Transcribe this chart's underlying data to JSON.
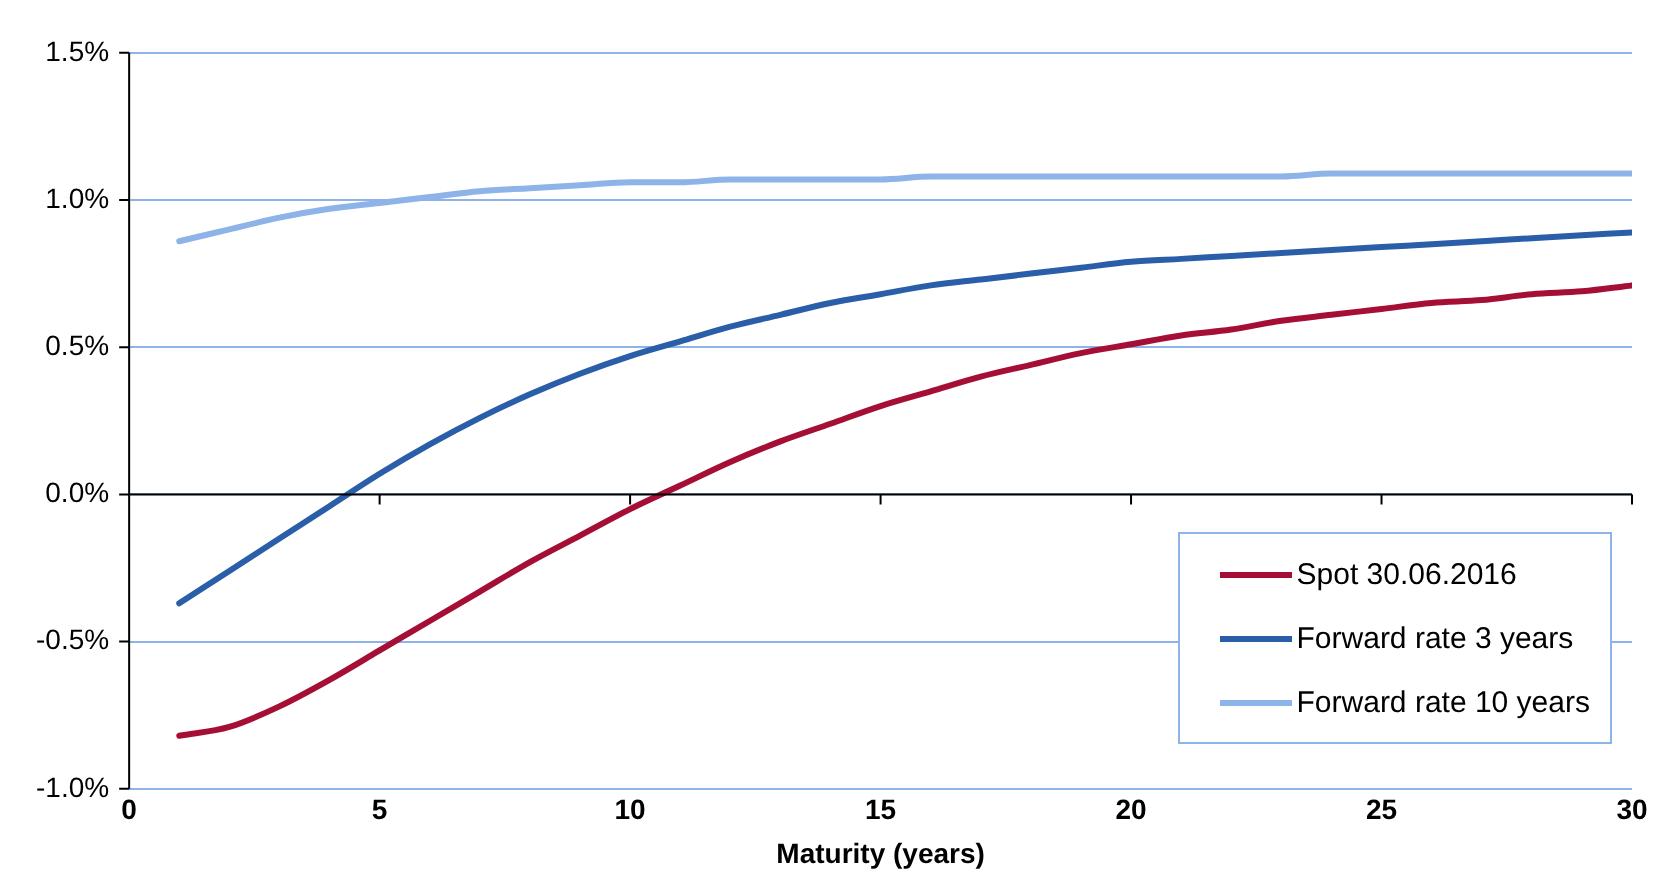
{
  "chart_data": {
    "type": "line",
    "xlabel": "Maturity (years)",
    "x": [
      1,
      2,
      3,
      4,
      5,
      6,
      7,
      8,
      9,
      10,
      11,
      12,
      13,
      14,
      15,
      16,
      17,
      18,
      19,
      20,
      21,
      22,
      23,
      24,
      25,
      26,
      27,
      28,
      29,
      30
    ],
    "series": [
      {
        "name": "Spot 30.06.2016",
        "color": "#a50f36",
        "values": [
          -0.82,
          -0.79,
          -0.72,
          -0.63,
          -0.53,
          -0.43,
          -0.33,
          -0.23,
          -0.14,
          -0.05,
          0.03,
          0.11,
          0.18,
          0.24,
          0.3,
          0.35,
          0.4,
          0.44,
          0.48,
          0.51,
          0.54,
          0.56,
          0.59,
          0.61,
          0.63,
          0.65,
          0.66,
          0.68,
          0.69,
          0.71
        ]
      },
      {
        "name": "Forward rate 3 years",
        "color": "#2a5ea8",
        "values": [
          -0.37,
          -0.26,
          -0.15,
          -0.04,
          0.07,
          0.17,
          0.26,
          0.34,
          0.41,
          0.47,
          0.52,
          0.57,
          0.61,
          0.65,
          0.68,
          0.71,
          0.73,
          0.75,
          0.77,
          0.79,
          0.8,
          0.81,
          0.82,
          0.83,
          0.84,
          0.85,
          0.86,
          0.87,
          0.88,
          0.89
        ]
      },
      {
        "name": "Forward rate 10 years",
        "color": "#8db3e8",
        "values": [
          0.86,
          0.9,
          0.94,
          0.97,
          0.99,
          1.01,
          1.03,
          1.04,
          1.05,
          1.06,
          1.06,
          1.07,
          1.07,
          1.07,
          1.07,
          1.08,
          1.08,
          1.08,
          1.08,
          1.08,
          1.08,
          1.08,
          1.08,
          1.09,
          1.09,
          1.09,
          1.09,
          1.09,
          1.09,
          1.09
        ]
      }
    ],
    "xlim": [
      0,
      30
    ],
    "xticks": [
      0,
      5,
      10,
      15,
      20,
      25,
      30
    ],
    "ylim": [
      -1.0,
      1.5
    ],
    "yticks": [
      {
        "value": -1.0,
        "label": "-1.0%"
      },
      {
        "value": -0.5,
        "label": "-0.5%"
      },
      {
        "value": 0.0,
        "label": "0.0%"
      },
      {
        "value": 0.5,
        "label": "0.5%"
      },
      {
        "value": 1.0,
        "label": "1.0%"
      },
      {
        "value": 1.5,
        "label": "1.5%"
      }
    ],
    "grid": "y",
    "legend": "bottom right",
    "marker": "none",
    "line_style": "solid"
  }
}
